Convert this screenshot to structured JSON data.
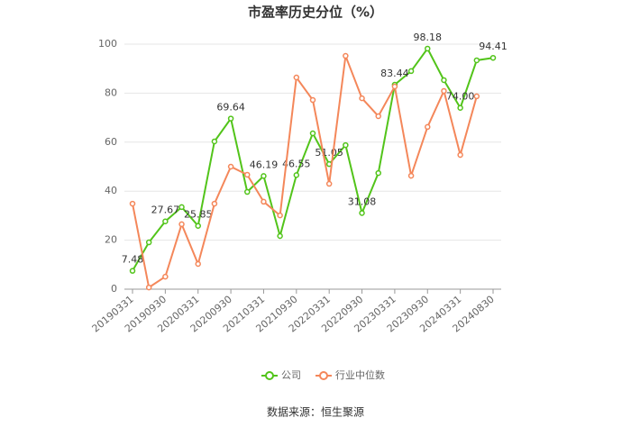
{
  "chart_data": {
    "type": "line",
    "title": "市盈率历史分位（%）",
    "categories": [
      "20190331",
      null,
      "20190930",
      null,
      "20200331",
      null,
      "20200930",
      null,
      "20210331",
      null,
      "20210930",
      null,
      "20220331",
      null,
      "20220930",
      null,
      "20230331",
      null,
      "20230930",
      null,
      "20240331",
      null,
      "20240830"
    ],
    "series": [
      {
        "name": "公司",
        "color": "#52c41a",
        "values": [
          7.48,
          19.1,
          27.67,
          33.5,
          25.85,
          60.3,
          69.64,
          39.7,
          46.19,
          21.7,
          46.55,
          63.6,
          51.05,
          58.8,
          31.08,
          47.4,
          83.44,
          89.0,
          98.18,
          85.3,
          74.0,
          93.4,
          94.41
        ],
        "value_labels": [
          "7.48",
          null,
          "27.67",
          null,
          "25.85",
          null,
          "69.64",
          null,
          "46.19",
          null,
          "46.55",
          null,
          "51.05",
          null,
          "31.08",
          null,
          "83.44",
          null,
          "98.18",
          null,
          "74.00",
          null,
          "94.41"
        ]
      },
      {
        "name": "行业中位数",
        "color": "#f4875a",
        "values": [
          34.9,
          0.7,
          5.1,
          26.5,
          10.3,
          34.9,
          50.0,
          46.7,
          35.7,
          30.1,
          86.4,
          77.2,
          43.0,
          95.2,
          77.9,
          70.6,
          82.7,
          46.3,
          66.2,
          80.9,
          54.8,
          78.7,
          null
        ]
      }
    ],
    "ylim": [
      0,
      100
    ],
    "yticks": [
      0,
      20,
      40,
      60,
      80,
      100
    ],
    "grid": true,
    "legend": "bottom",
    "source": "数据来源：恒生聚源"
  }
}
